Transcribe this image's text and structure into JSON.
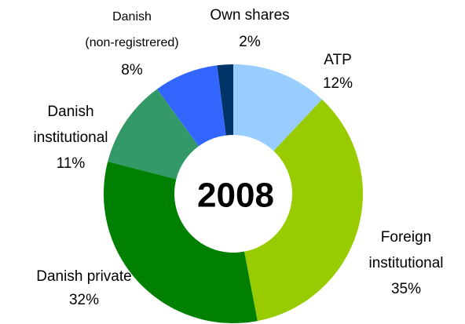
{
  "chart_data": {
    "type": "donut",
    "center_label": "2008",
    "categories": [
      "ATP",
      "Foreign\ninstitutional",
      "Danish private",
      "Danish\ninstitutional",
      "Danish\n(non-registrered)",
      "Own shares"
    ],
    "values": [
      12,
      35,
      32,
      11,
      8,
      2
    ],
    "value_labels": [
      "12%",
      "35%",
      "32%",
      "11%",
      "8%",
      "2%"
    ],
    "colors": [
      "#99ccff",
      "#99cc00",
      "#008000",
      "#339966",
      "#3366ff",
      "#003366"
    ]
  }
}
